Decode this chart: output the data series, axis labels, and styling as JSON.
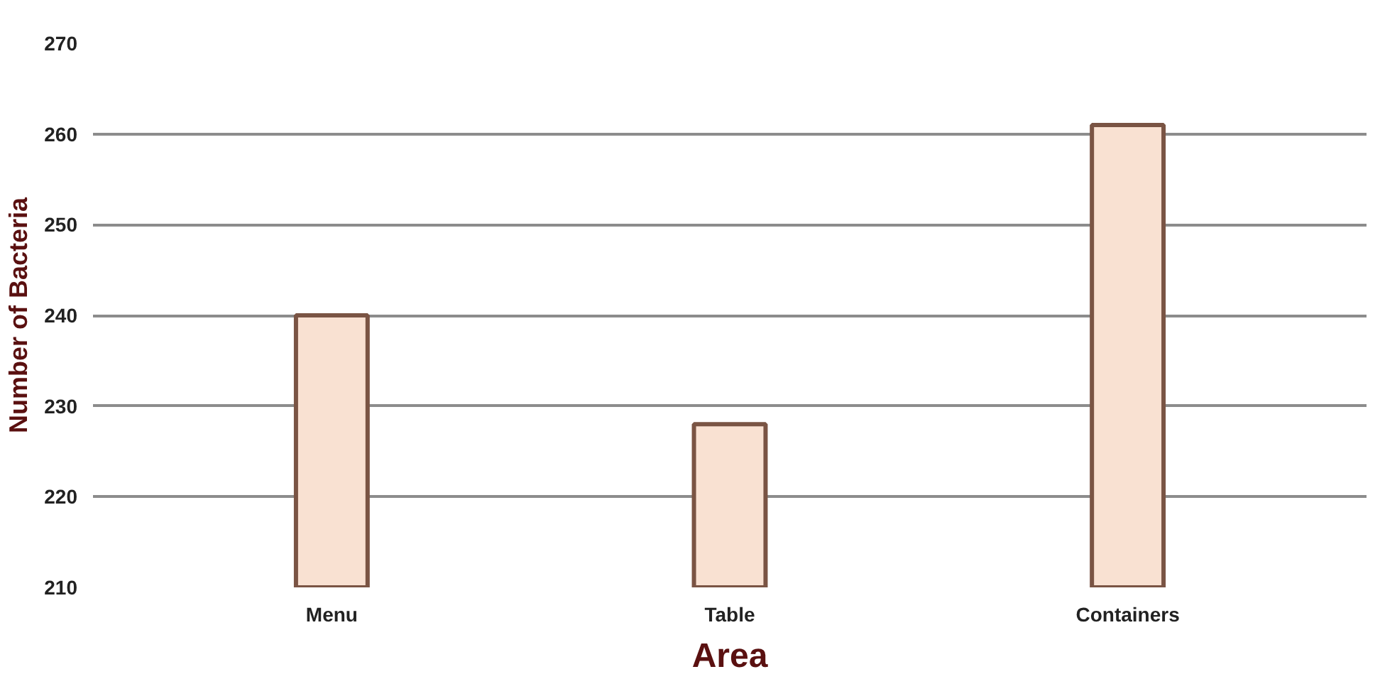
{
  "chart_data": {
    "type": "bar",
    "xlabel": "Area",
    "ylabel": "Number of Bacteria",
    "categories": [
      "Menu",
      "Table",
      "Containers"
    ],
    "values": [
      240,
      228,
      261
    ],
    "color": "#f9e1d2",
    "ylim": [
      210,
      270
    ],
    "yticks": [
      210,
      220,
      230,
      240,
      250,
      260,
      270
    ],
    "grid": "y"
  }
}
